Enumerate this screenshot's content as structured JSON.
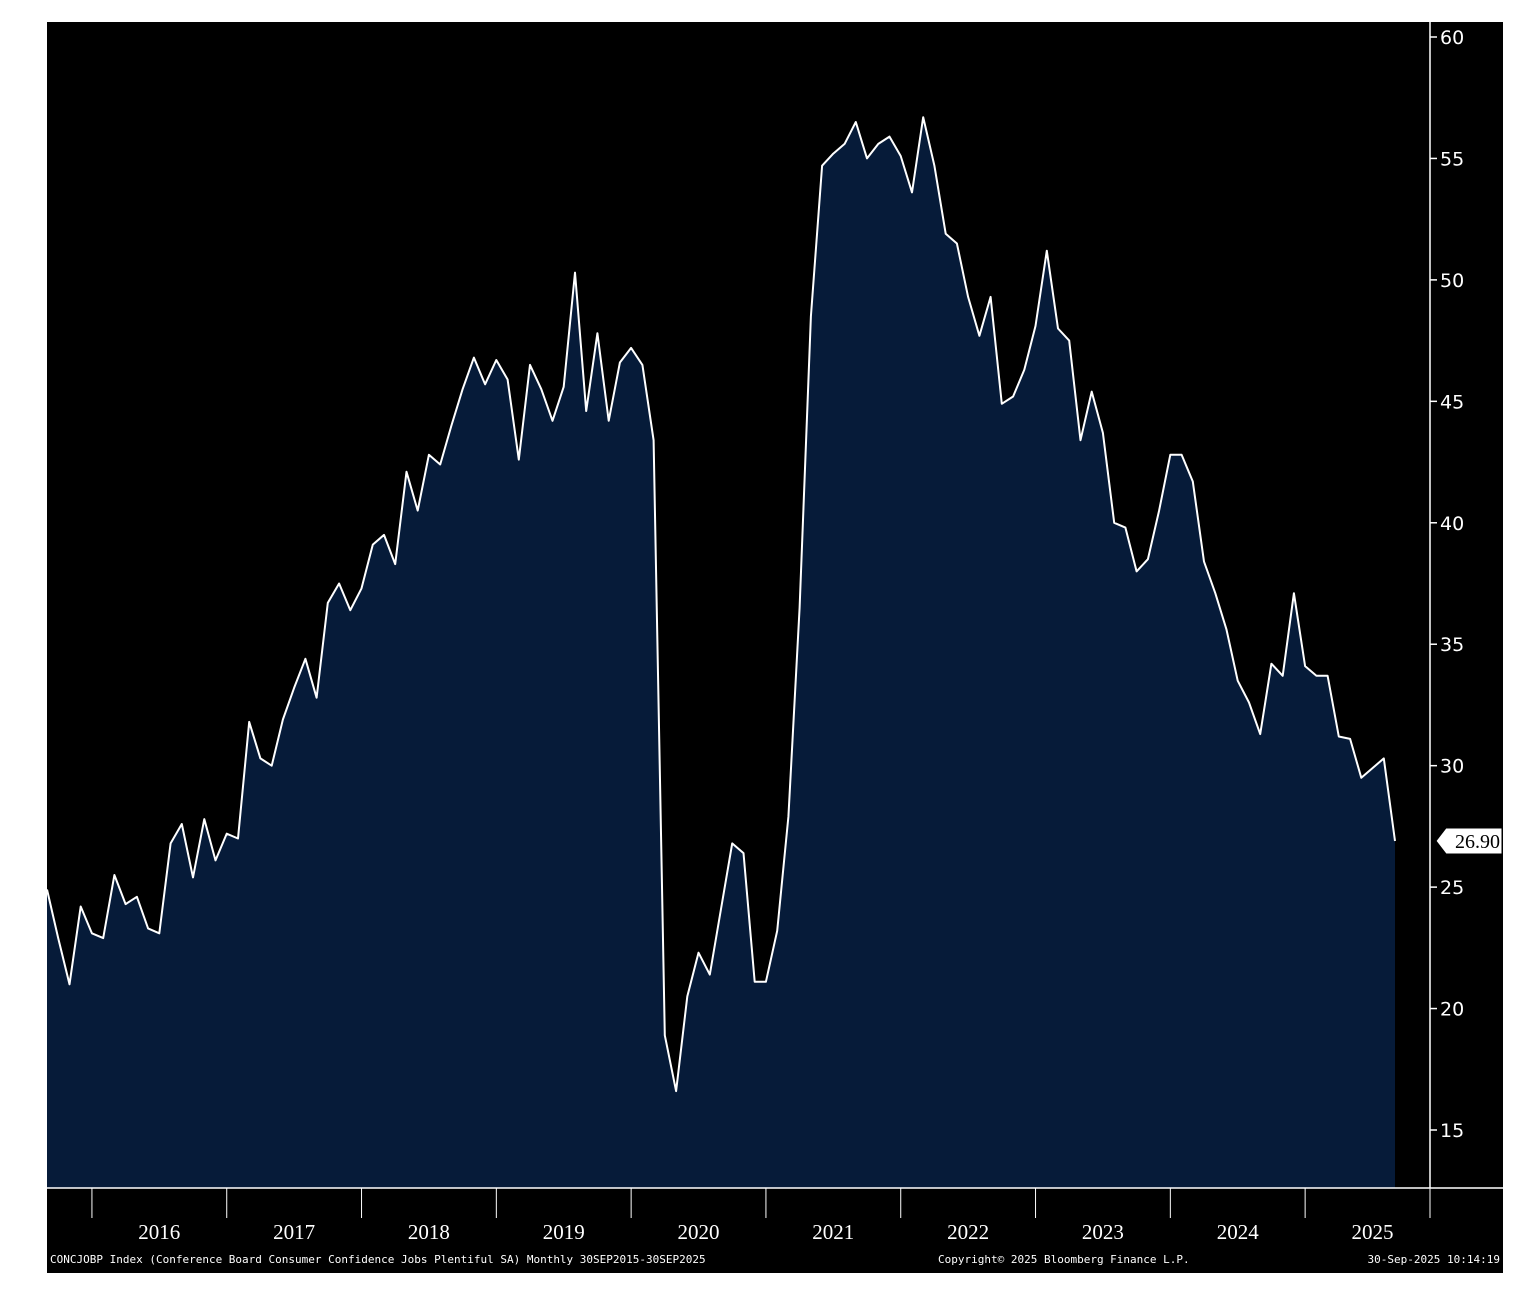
{
  "chart_data": {
    "type": "area",
    "ylim": [
      12.5,
      60.5
    ],
    "y_ticks": [
      15,
      20,
      25,
      30,
      35,
      40,
      45,
      50,
      55,
      60
    ],
    "x_range": [
      "2015-09",
      "2025-09"
    ],
    "x_year_labels": [
      "2016",
      "2017",
      "2018",
      "2019",
      "2020",
      "2021",
      "2022",
      "2023",
      "2024",
      "2025"
    ],
    "series": [
      {
        "x": [
          "2015-09",
          "2015-10",
          "2015-11",
          "2015-12",
          "2016-01",
          "2016-02",
          "2016-03",
          "2016-04",
          "2016-05",
          "2016-06",
          "2016-07",
          "2016-08",
          "2016-09",
          "2016-10",
          "2016-11",
          "2016-12",
          "2017-01",
          "2017-02",
          "2017-03",
          "2017-04",
          "2017-05",
          "2017-06",
          "2017-07",
          "2017-08",
          "2017-09",
          "2017-10",
          "2017-11",
          "2017-12",
          "2018-01",
          "2018-02",
          "2018-03",
          "2018-04",
          "2018-05",
          "2018-06",
          "2018-07",
          "2018-08",
          "2018-09",
          "2018-10",
          "2018-11",
          "2018-12",
          "2019-01",
          "2019-02",
          "2019-03",
          "2019-04",
          "2019-05",
          "2019-06",
          "2019-07",
          "2019-08",
          "2019-09",
          "2019-10",
          "2019-11",
          "2019-12",
          "2020-01",
          "2020-02",
          "2020-03",
          "2020-04",
          "2020-05",
          "2020-06",
          "2020-07",
          "2020-08",
          "2020-09",
          "2020-10",
          "2020-11",
          "2020-12",
          "2021-01",
          "2021-02",
          "2021-03",
          "2021-04",
          "2021-05",
          "2021-06",
          "2021-07",
          "2021-08",
          "2021-09",
          "2021-10",
          "2021-11",
          "2021-12",
          "2022-01",
          "2022-02",
          "2022-03",
          "2022-04",
          "2022-05",
          "2022-06",
          "2022-07",
          "2022-08",
          "2022-09",
          "2022-10",
          "2022-11",
          "2022-12",
          "2023-01",
          "2023-02",
          "2023-03",
          "2023-04",
          "2023-05",
          "2023-06",
          "2023-07",
          "2023-08",
          "2023-09",
          "2023-10",
          "2023-11",
          "2023-12",
          "2024-01",
          "2024-02",
          "2024-03",
          "2024-04",
          "2024-05",
          "2024-06",
          "2024-07",
          "2024-08",
          "2024-09",
          "2024-10",
          "2024-11",
          "2024-12",
          "2025-01",
          "2025-02",
          "2025-03",
          "2025-04",
          "2025-05",
          "2025-06",
          "2025-07",
          "2025-08",
          "2025-09"
        ],
        "values": [
          24.9,
          22.9,
          21.0,
          24.2,
          23.1,
          22.9,
          25.5,
          24.3,
          24.6,
          23.3,
          23.1,
          26.8,
          27.6,
          25.4,
          27.8,
          26.1,
          27.2,
          27.0,
          31.8,
          30.3,
          30.0,
          31.9,
          33.2,
          34.4,
          32.8,
          36.7,
          37.5,
          36.4,
          37.3,
          39.1,
          39.5,
          38.3,
          42.1,
          40.5,
          42.8,
          42.4,
          44.0,
          45.5,
          46.8,
          45.7,
          46.7,
          45.9,
          42.6,
          46.5,
          45.5,
          44.2,
          45.6,
          50.3,
          44.6,
          47.8,
          44.2,
          46.6,
          47.2,
          46.5,
          43.4,
          18.9,
          16.6,
          20.5,
          22.3,
          21.4,
          24.1,
          26.8,
          26.4,
          21.1,
          21.1,
          23.2,
          27.9,
          36.5,
          48.5,
          54.7,
          55.2,
          55.6,
          56.5,
          55.0,
          55.6,
          55.9,
          55.1,
          53.6,
          56.7,
          54.7,
          51.9,
          51.5,
          49.3,
          47.7,
          49.3,
          44.9,
          45.2,
          46.3,
          48.1,
          51.2,
          48.0,
          47.5,
          43.4,
          45.4,
          43.7,
          40.0,
          39.8,
          38.0,
          38.5,
          40.5,
          42.8,
          42.8,
          41.7,
          38.4,
          37.1,
          35.6,
          33.5,
          32.6,
          31.3,
          34.2,
          33.7,
          37.1,
          34.1,
          33.7,
          33.7,
          31.2,
          31.1,
          29.5,
          29.9,
          30.3,
          26.9
        ]
      }
    ],
    "last_value_label": "26.90",
    "footer": {
      "description": "CONCJOBP Index (Conference Board Consumer Confidence Jobs Plentiful SA) Monthly 30SEP2015-30SEP2025",
      "copyright": "Copyright© 2025 Bloomberg Finance L.P.",
      "timestamp": "30-Sep-2025 10:14:19"
    },
    "colors": {
      "background": "#000000",
      "area_fill": "#061b39",
      "line": "#ffffff",
      "page": "#ffffff"
    },
    "grid": false
  }
}
